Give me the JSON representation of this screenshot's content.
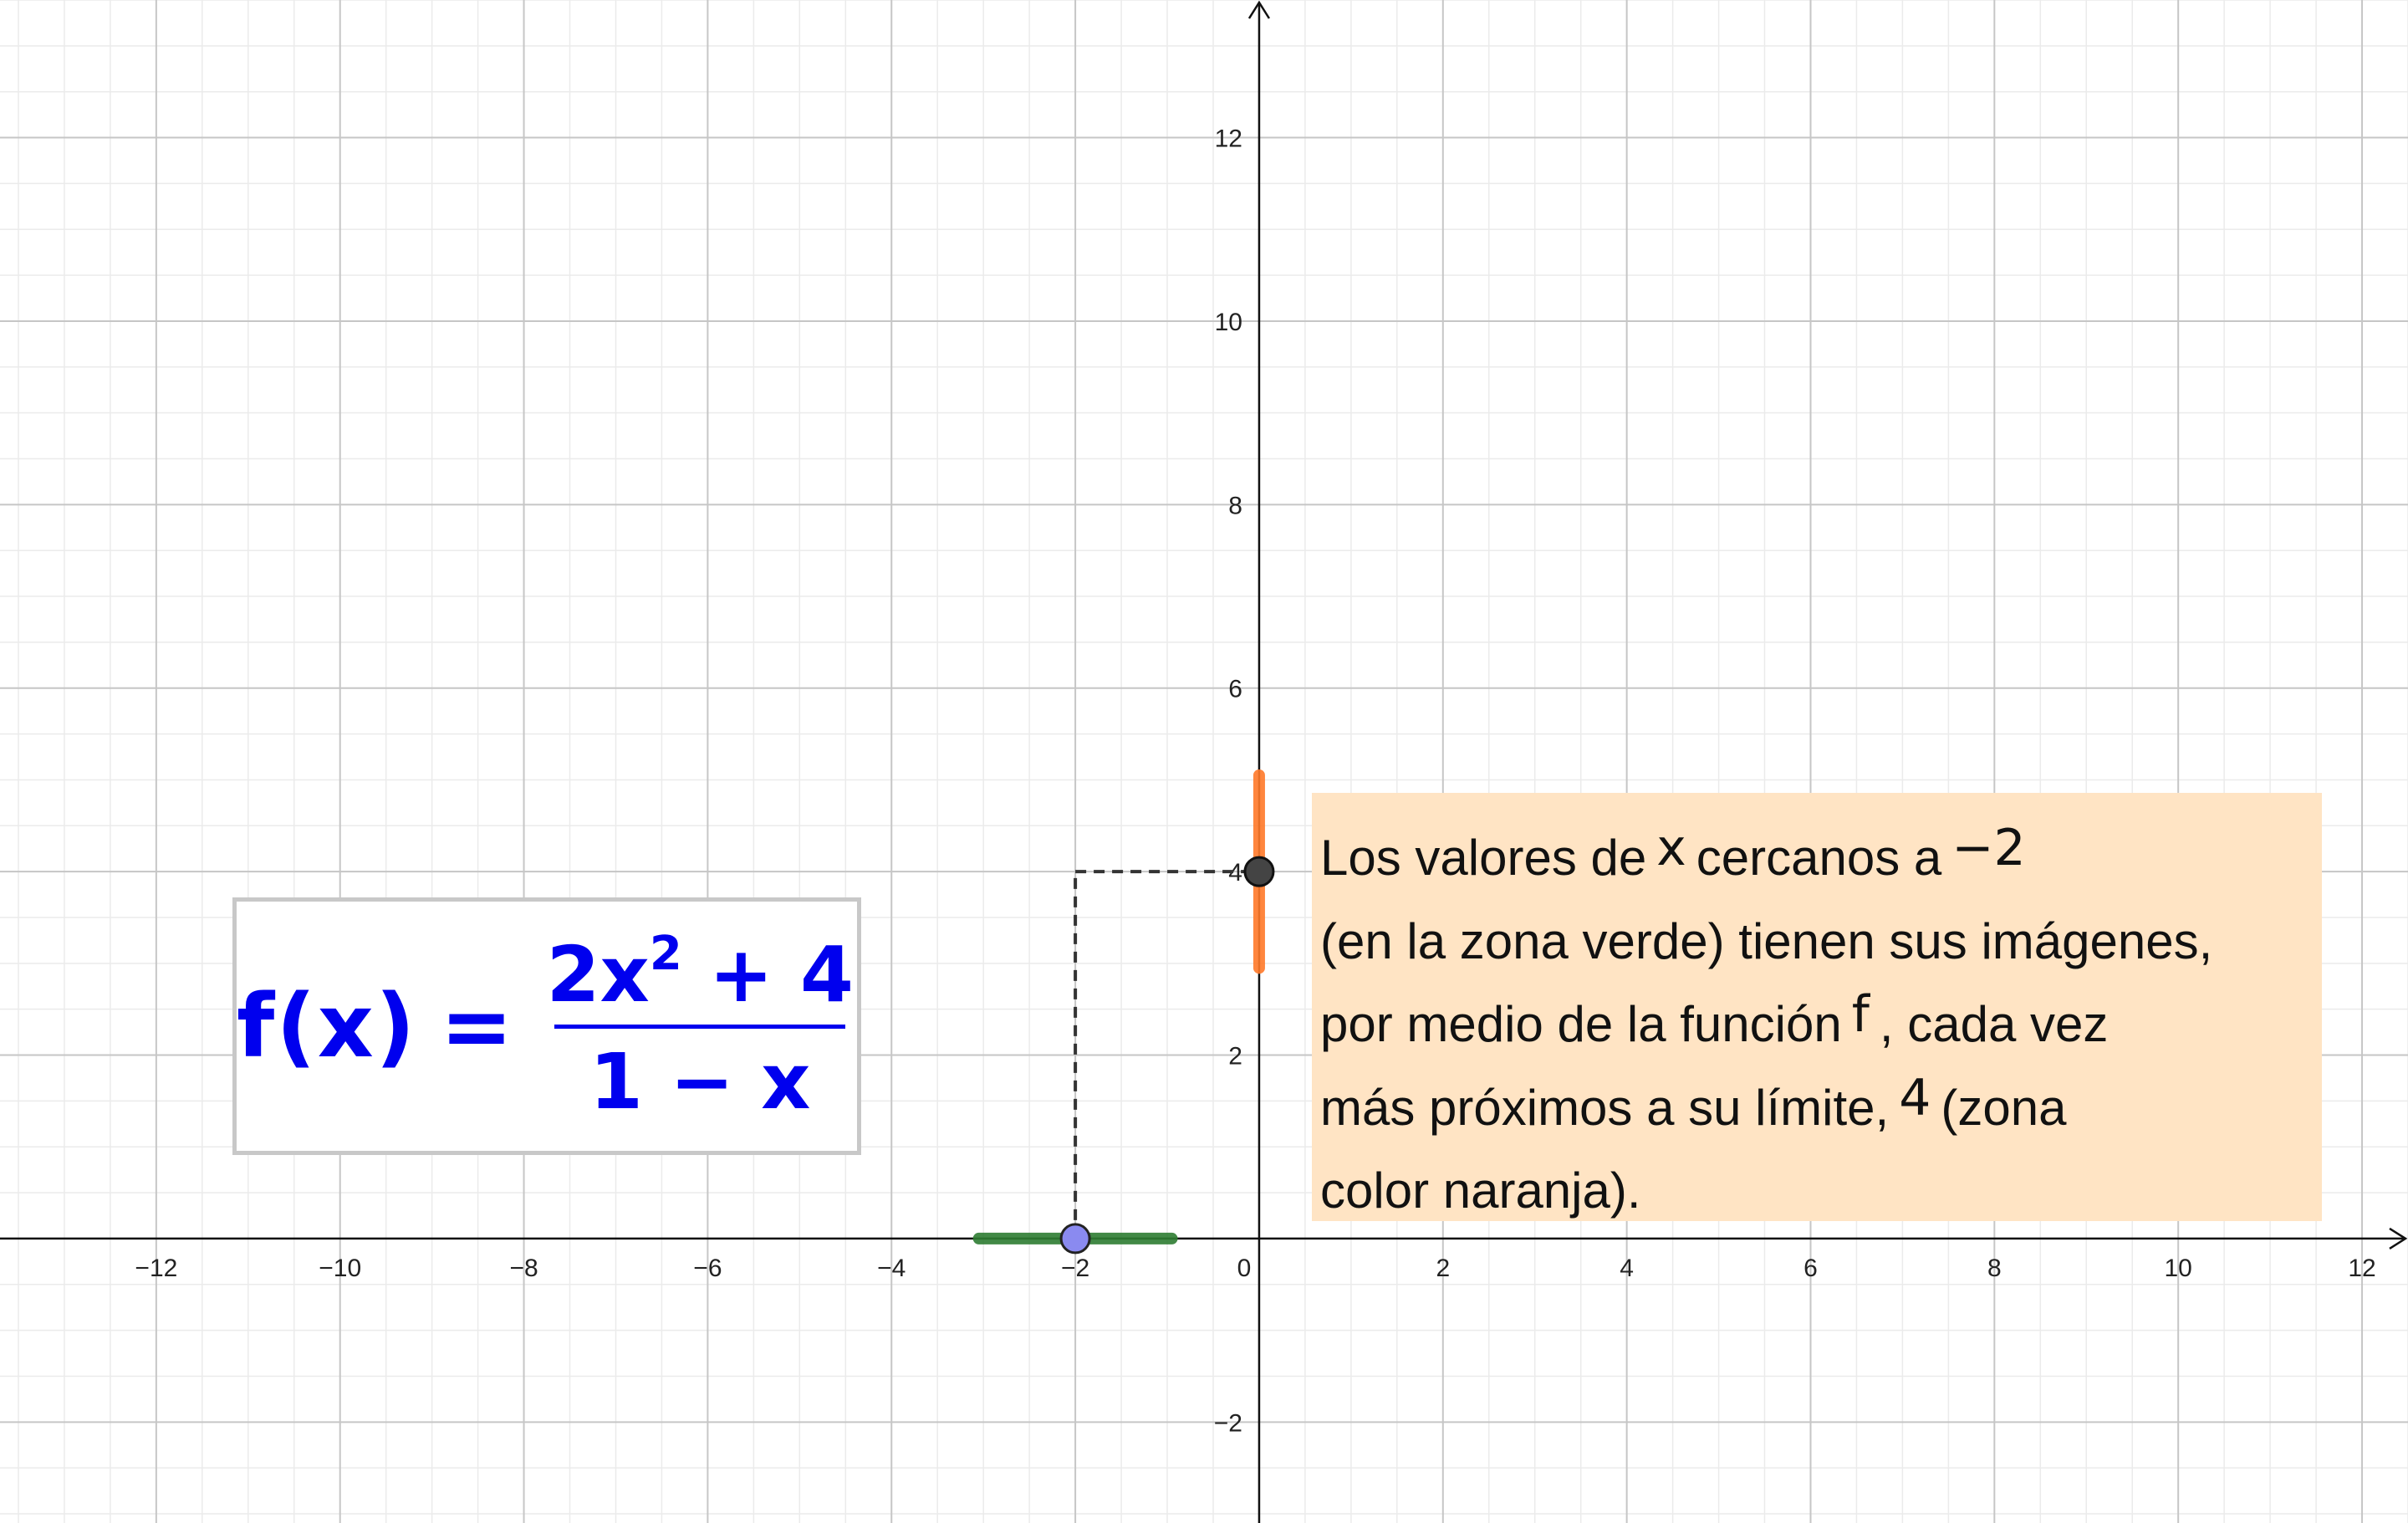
{
  "chart_data": {
    "type": "line",
    "function": "f(x) = (2x^2 + 4) / (1 - x)",
    "xlim": [
      -13.7,
      12.5
    ],
    "ylim": [
      -3.1,
      13.5
    ],
    "grid": true,
    "x_tick_labels": [
      "−12",
      "−10",
      "−8",
      "−6",
      "−4",
      "−2",
      "0",
      "2",
      "4",
      "6",
      "8",
      "10",
      "12"
    ],
    "x_tick_values": [
      -12,
      -10,
      -8,
      -6,
      -4,
      -2,
      0,
      2,
      4,
      6,
      8,
      10,
      12
    ],
    "y_tick_labels": [
      "12",
      "10",
      "8",
      "6",
      "4",
      "2",
      "−2"
    ],
    "y_tick_values": [
      12,
      10,
      8,
      6,
      4,
      2,
      -2
    ],
    "point_on_x_axis": {
      "x": -2,
      "y": 0
    },
    "point_on_y_axis": {
      "x": 0,
      "y": 4
    },
    "green_interval_x": [
      -3.05,
      -0.95
    ],
    "orange_interval_y": [
      2.95,
      5.05
    ]
  },
  "colors": {
    "curve": "#5050f0",
    "green_zone": "#2e7d32",
    "orange_zone": "#ff7a2a",
    "point_x": "#8a8af0",
    "point_y": "#444444",
    "note_background": "#ffe4c4",
    "formula_text": "#0000ee"
  },
  "formula": {
    "lhs": "f(x)",
    "eq": "=",
    "num_base": "2x",
    "num_exp": "2",
    "num_rest": " + 4",
    "den": "1 − x"
  },
  "note": {
    "l1a": "Los valores de",
    "l1x": "x",
    "l1b": "cercanos a",
    "l1v": "−2",
    "l2": "(en la zona verde) tienen sus imágenes,",
    "l3a": "por medio de la función",
    "l3f": "f",
    "l3b": ", cada vez",
    "l4a": "más próximos a su límite,",
    "l4v": "4",
    "l4b": "(zona",
    "l5": "color naranja)."
  }
}
